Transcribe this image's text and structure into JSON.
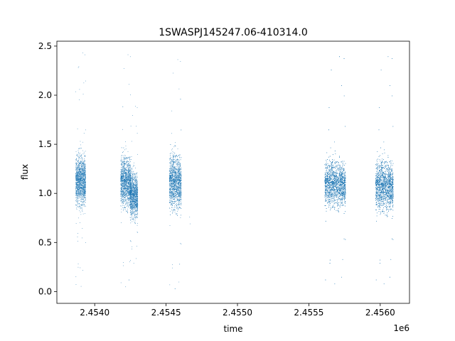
{
  "chart_data": {
    "type": "scatter",
    "title": "1SWASPJ145247.06-410314.0",
    "xlabel": "time",
    "ylabel": "flux",
    "x_offset_label": "1e6",
    "xlim": [
      2453735,
      2456205
    ],
    "ylim": [
      -0.12,
      2.55
    ],
    "x_ticks": [
      2.454,
      2.4545,
      2.455,
      2.4555,
      2.456
    ],
    "x_tick_labels": [
      "2.4540",
      "2.4545",
      "2.4550",
      "2.4555",
      "2.4560"
    ],
    "y_ticks": [
      0.0,
      0.5,
      1.0,
      1.5,
      2.0,
      2.5
    ],
    "y_tick_labels": [
      "0.0",
      "0.5",
      "1.0",
      "1.5",
      "2.0",
      "2.5"
    ],
    "grid": false,
    "marker_color": "#1f77b4",
    "series": [
      {
        "clusters": [
          {
            "x_range": [
              2453867,
              2453937
            ],
            "flux_center": 1.13,
            "flux_spread": 0.22,
            "flux_min": 0.0,
            "flux_max": 2.45
          },
          {
            "x_range": [
              2454182,
              2454255
            ],
            "flux_center": 1.12,
            "flux_spread": 0.22,
            "flux_min": 0.02,
            "flux_max": 2.43
          },
          {
            "x_range": [
              2454248,
              2454302
            ],
            "flux_center": 0.98,
            "flux_spread": 0.2,
            "flux_min": 0.27,
            "flux_max": 1.9
          },
          {
            "x_range": [
              2454523,
              2454607
            ],
            "flux_center": 1.12,
            "flux_spread": 0.24,
            "flux_min": 0.0,
            "flux_max": 2.38
          },
          {
            "x_range": [
              2455612,
              2455758
            ],
            "flux_center": 1.1,
            "flux_spread": 0.2,
            "flux_min": 0.05,
            "flux_max": 2.41
          },
          {
            "x_range": [
              2455968,
              2456092
            ],
            "flux_center": 1.08,
            "flux_spread": 0.22,
            "flux_min": 0.05,
            "flux_max": 2.41
          }
        ],
        "isolated_points": [
          {
            "x": 2454665,
            "y": 0.76
          },
          {
            "x": 2454668,
            "y": 0.69
          }
        ]
      }
    ]
  }
}
